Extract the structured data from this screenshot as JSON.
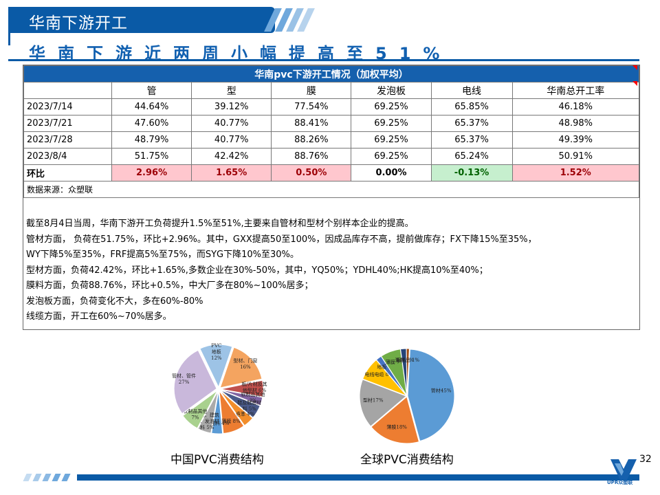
{
  "banner": {
    "title": "华南下游开工"
  },
  "subtitle": "华南下游近两周小幅提高至51%",
  "table": {
    "title": "华南pvc下游开工情况（加权平均）",
    "columns": [
      "",
      "管",
      "型",
      "膜",
      "发泡板",
      "电线",
      "华南总开工率"
    ],
    "rows": [
      {
        "date": "2023/7/14",
        "values": [
          "44.64%",
          "39.12%",
          "77.54%",
          "69.25%",
          "65.85%",
          "46.18%"
        ]
      },
      {
        "date": "2023/7/21",
        "values": [
          "47.60%",
          "40.77%",
          "88.41%",
          "69.25%",
          "65.37%",
          "48.98%"
        ]
      },
      {
        "date": "2023/7/28",
        "values": [
          "48.79%",
          "40.77%",
          "88.26%",
          "69.25%",
          "65.37%",
          "49.39%"
        ]
      },
      {
        "date": "2023/8/4",
        "values": [
          "51.75%",
          "42.42%",
          "88.76%",
          "69.25%",
          "65.24%",
          "50.91%"
        ]
      }
    ],
    "hb_row": {
      "label": "环比",
      "values": [
        "2.96%",
        "1.65%",
        "0.50%",
        "0.00%",
        "-0.13%",
        "1.52%"
      ]
    },
    "source": "数据来源：众塑联"
  },
  "notes": [
    "截至8月4日当周，华南下游开工负荷提升1.5%至51%,主要来自管材和型材个别样本企业的提高。",
    "管材方面， 负荷在51.75%，环比+2.96%。其中，GXX提高50至100%，因成品库存不高，提前做库存；FX下降15%至35%，",
    "WY下降5%至35%，FRF提高5%至75%，而SYG下降10%至30%。",
    "型材方面，负荷42.42%，环比+1.65%,多数企业在30%-50%，其中，YQ50%；YDHL40%;HK提高10%至40%；",
    "膜料方面，负荷88.76%，环比+0.5%，中大厂多在80%~100%居多；",
    "发泡板方面，负荷变化不大，多在60%-80%",
    "线缆方面，开工在60%~70%居多。"
  ],
  "china_pie": {
    "caption": "中国PVC消费结构",
    "labels": [
      "PVC\n地板\n12%",
      "型材、门窗\n16%",
      "板/片材及其\n他型材 6%",
      "软制品其他\n3%",
      "鞋及鞋底材\n料 5%",
      "人造革 4%",
      "薄膜 8%",
      "电缆料 4%",
      "电线、建筑\n革、发泡材\n料 5%",
      "软制品其他\n7%",
      "管材、管件\n27%"
    ],
    "values": [
      12,
      16,
      6,
      3,
      5,
      4,
      8,
      4,
      5,
      7,
      27
    ],
    "colors": [
      "#9dc3e6",
      "#f4a460",
      "#c0504d",
      "#8064a2",
      "#4a5a8a",
      "#f28e2b",
      "#ed7d31",
      "#5b9bd5",
      "#aaaaaa",
      "#a9d18e",
      "#c9b8db"
    ]
  },
  "global_pie": {
    "caption": "全球PVC消费结构",
    "labels": [
      "管材45%",
      "薄膜18%",
      "型材17%",
      "电线电缆 8%",
      "地板 2%",
      "薄膜 7%",
      "涂料 2%",
      "瓶制品 1%"
    ],
    "values": [
      45,
      18,
      17,
      8,
      2,
      7,
      2,
      1
    ],
    "colors": [
      "#5b9bd5",
      "#ed7d31",
      "#a5a5a5",
      "#ffc000",
      "#4472c4",
      "#70ad47",
      "#264478",
      "#9e480e"
    ]
  },
  "footer": {
    "page": "32",
    "logo_text": "UPR众塑联"
  }
}
